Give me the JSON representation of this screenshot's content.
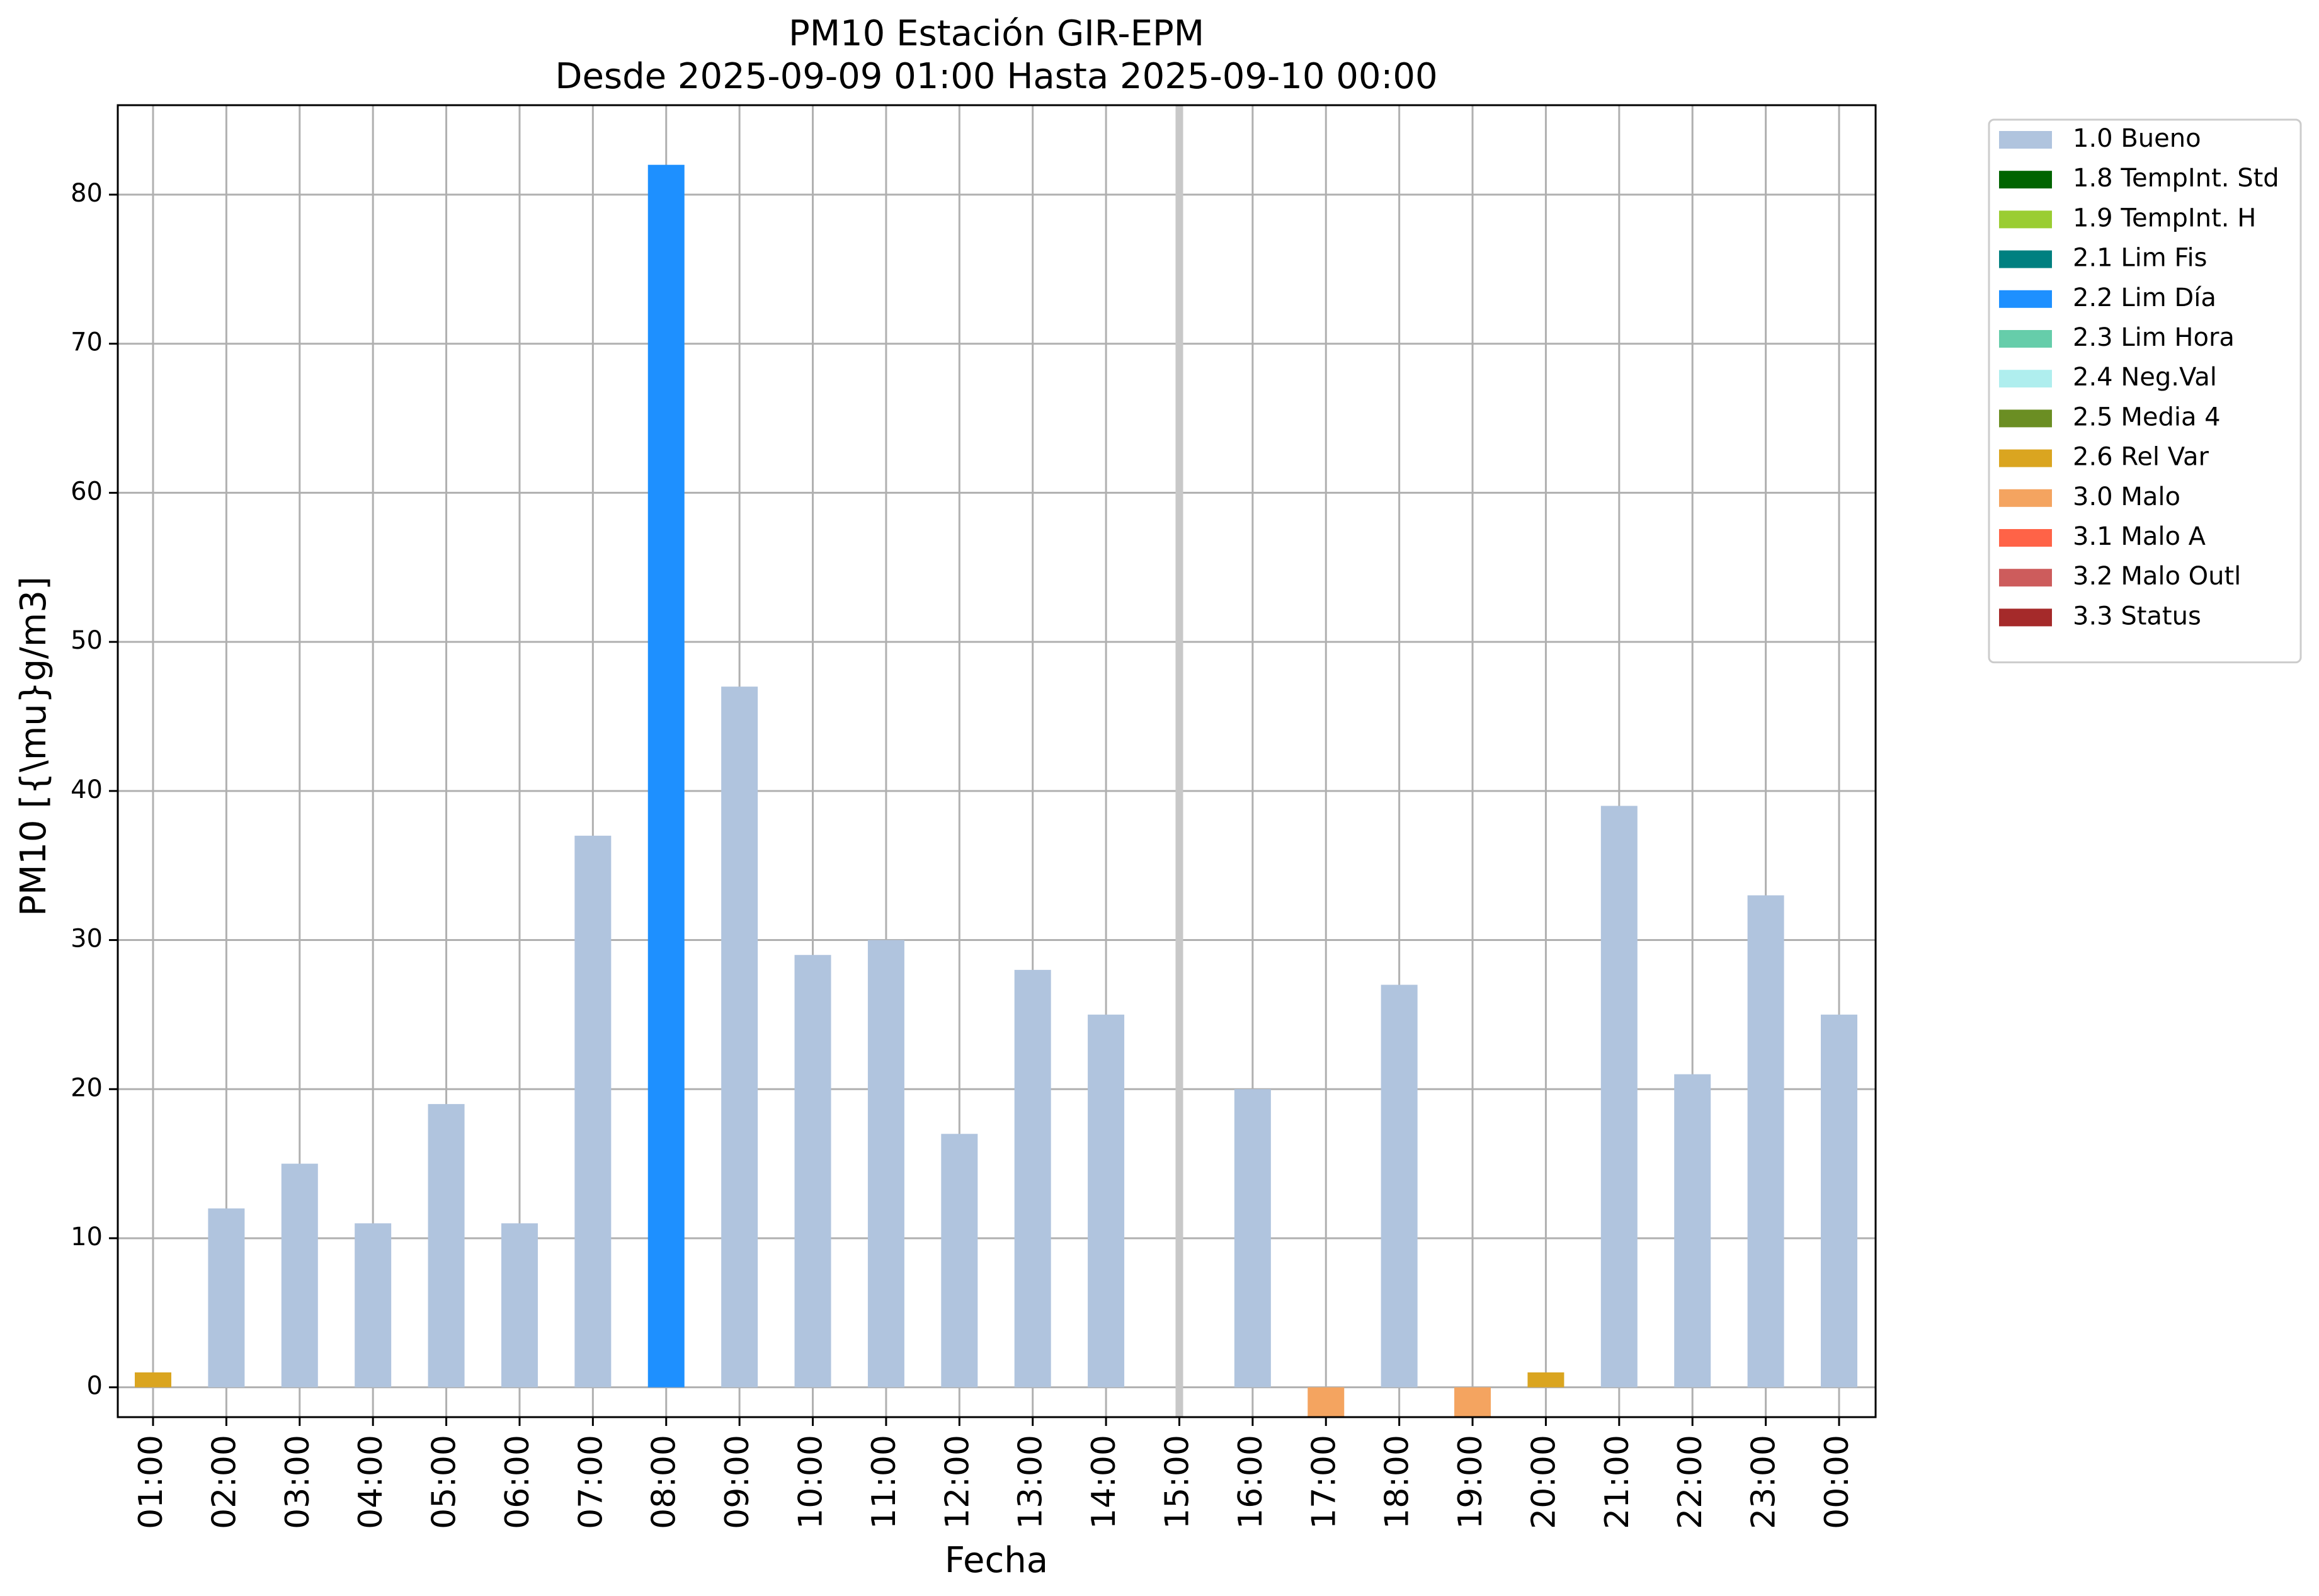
{
  "chart_data": {
    "type": "bar",
    "title": "PM10 Estación GIR-EPM",
    "subtitle": "Desde 2025-09-09 01:00 Hasta 2025-09-10 00:00",
    "xlabel": "Fecha",
    "ylabel": "PM10 [{\\mu}g/m3]",
    "ylim": [
      -2,
      86
    ],
    "yticks": [
      0,
      10,
      20,
      30,
      40,
      50,
      60,
      70,
      80
    ],
    "ytick_labels": [
      "0",
      "10",
      "20",
      "30",
      "40",
      "50",
      "60",
      "70",
      "80"
    ],
    "grid": true,
    "legend_position": "outside-right-top",
    "categories": [
      "01:00",
      "02:00",
      "03:00",
      "04:00",
      "05:00",
      "06:00",
      "07:00",
      "08:00",
      "09:00",
      "10:00",
      "11:00",
      "12:00",
      "13:00",
      "14:00",
      "15:00",
      "16:00",
      "17:00",
      "18:00",
      "19:00",
      "20:00",
      "21:00",
      "22:00",
      "23:00",
      "00:00"
    ],
    "values": [
      1,
      12,
      15,
      11,
      19,
      11,
      37,
      82,
      47,
      29,
      30,
      17,
      28,
      25,
      null,
      20,
      -2,
      27,
      -2,
      1,
      39,
      21,
      33,
      25
    ],
    "flags": [
      "2.6 Rel Var",
      "1.0 Bueno",
      "1.0 Bueno",
      "1.0 Bueno",
      "1.0 Bueno",
      "1.0 Bueno",
      "1.0 Bueno",
      "2.2 Lim Día",
      "1.0 Bueno",
      "1.0 Bueno",
      "1.0 Bueno",
      "1.0 Bueno",
      "1.0 Bueno",
      "1.0 Bueno",
      null,
      "1.0 Bueno",
      "3.0 Malo",
      "1.0 Bueno",
      "3.0 Malo",
      "2.6 Rel Var",
      "1.0 Bueno",
      "1.0 Bueno",
      "1.0 Bueno",
      "1.0 Bueno"
    ],
    "highlight_category": "15:00",
    "legend": [
      {
        "name": "1.0 Bueno",
        "color": "#b0c4de"
      },
      {
        "name": "1.8 TempInt. Std",
        "color": "#006400"
      },
      {
        "name": "1.9 TempInt. H",
        "color": "#9acd32"
      },
      {
        "name": "2.1 Lim Fis",
        "color": "#008080"
      },
      {
        "name": "2.2 Lim Día",
        "color": "#1e90ff"
      },
      {
        "name": "2.3 Lim Hora",
        "color": "#66cdaa"
      },
      {
        "name": "2.4 Neg.Val",
        "color": "#afeeee"
      },
      {
        "name": "2.5 Media 4",
        "color": "#6b8e23"
      },
      {
        "name": "2.6 Rel Var",
        "color": "#daa520"
      },
      {
        "name": "3.0 Malo",
        "color": "#f4a460"
      },
      {
        "name": "3.1 Malo A",
        "color": "#ff6347"
      },
      {
        "name": "3.2 Malo Outl",
        "color": "#cd5c5c"
      },
      {
        "name": "3.3 Status",
        "color": "#a52a2a"
      }
    ]
  }
}
